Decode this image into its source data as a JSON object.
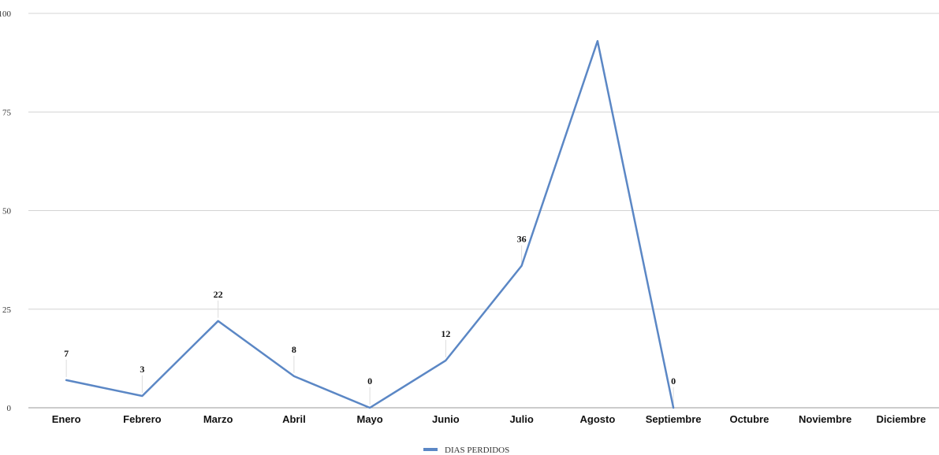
{
  "chart_data": {
    "type": "line",
    "categories": [
      "Enero",
      "Febrero",
      "Marzo",
      "Abril",
      "Mayo",
      "Junio",
      "Julio",
      "Agosto",
      "Septiembre",
      "Octubre",
      "Noviembre",
      "Diciembre"
    ],
    "series": [
      {
        "name": "DIAS PERDIDOS",
        "values": [
          7,
          3,
          22,
          8,
          0,
          12,
          36,
          93,
          0,
          null,
          null,
          null
        ],
        "data_labels": [
          "7",
          "3",
          "22",
          "8",
          "0",
          "12",
          "36",
          "",
          "0",
          "",
          "",
          ""
        ],
        "color": "#5b87c5"
      }
    ],
    "yticks": [
      "0",
      "25",
      "50",
      "75",
      "100"
    ],
    "ylim": [
      0,
      100
    ],
    "grid": true,
    "legend_position": "bottom-center"
  }
}
